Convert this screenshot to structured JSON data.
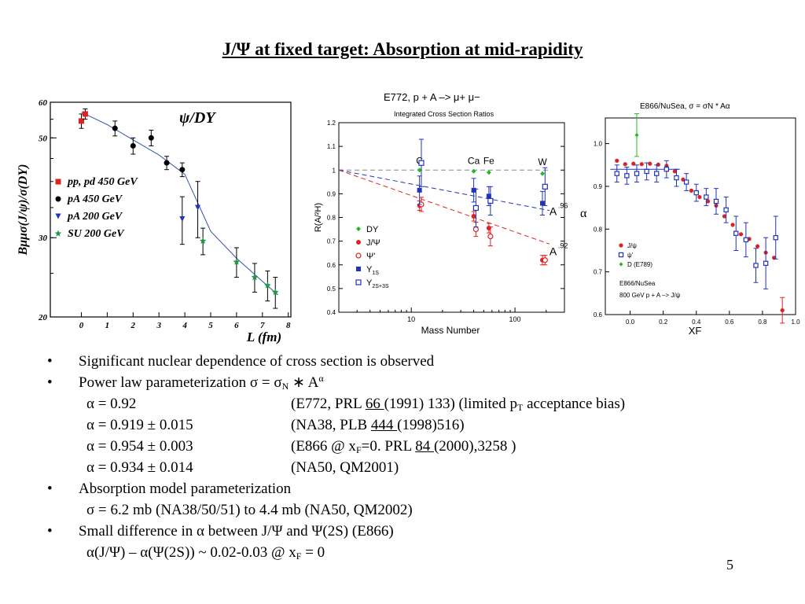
{
  "title": "J/Ψ at fixed target: Absorption at mid-rapidity",
  "page_number": "5",
  "chart_data": [
    {
      "type": "scatter",
      "title": "ψ/DY",
      "ylabel": "Bμμσ(J/ψ)/σ(DY)",
      "xlabel": "L (fm)",
      "xlim": [
        -1.2,
        8.1
      ],
      "ylim": [
        20,
        60
      ],
      "yscale": "log",
      "xticks": [
        0,
        1,
        2,
        3,
        4,
        5,
        6,
        7,
        8
      ],
      "yticks": [
        20,
        30,
        50,
        60
      ],
      "series": [
        {
          "name": "pp, pd 450 GeV",
          "color": "#dd2222",
          "marker": "square",
          "points": [
            {
              "x": 0.0,
              "y": 54.5,
              "e": 2.0
            },
            {
              "x": 0.15,
              "y": 56.5,
              "e": 1.5
            }
          ]
        },
        {
          "name": "pA 450 GeV",
          "color": "#000000",
          "marker": "circle",
          "points": [
            {
              "x": 1.3,
              "y": 52.5,
              "e": 2.0
            },
            {
              "x": 2.0,
              "y": 48.0,
              "e": 2.0
            },
            {
              "x": 2.7,
              "y": 50.0,
              "e": 2.0
            },
            {
              "x": 3.3,
              "y": 44.0,
              "e": 1.5
            },
            {
              "x": 3.9,
              "y": 42.5,
              "e": 1.5
            }
          ]
        },
        {
          "name": "pA 200 GeV",
          "color": "#2233bb",
          "marker": "triangle-down",
          "points": [
            {
              "x": 3.9,
              "y": 33.0,
              "e": 4.0
            },
            {
              "x": 4.5,
              "y": 35.0,
              "e": 5.0
            }
          ]
        },
        {
          "name": "SU 200 GeV",
          "color": "#229944",
          "marker": "star",
          "points": [
            {
              "x": 4.7,
              "y": 29.5,
              "e": 2.0
            },
            {
              "x": 6.0,
              "y": 26.5,
              "e": 2.0
            },
            {
              "x": 6.7,
              "y": 24.5,
              "e": 1.8
            },
            {
              "x": 7.2,
              "y": 23.5,
              "e": 1.8
            },
            {
              "x": 7.5,
              "y": 22.7,
              "e": 1.8
            }
          ]
        }
      ],
      "fit_curve": [
        {
          "x": 0.0,
          "y": 57
        },
        {
          "x": 1,
          "y": 53.5
        },
        {
          "x": 2,
          "y": 49.5
        },
        {
          "x": 3,
          "y": 45.8
        },
        {
          "x": 4,
          "y": 41.5
        },
        {
          "x": 5,
          "y": 31
        },
        {
          "x": 6,
          "y": 27
        },
        {
          "x": 7,
          "y": 24
        },
        {
          "x": 7.6,
          "y": 22.4
        }
      ]
    },
    {
      "type": "scatter",
      "title": "E772,  p + A –>  μ+ μ−",
      "subtitle": "Integrated Cross Section Ratios",
      "ylabel": "R(A/²H)",
      "xlabel": "Mass Number",
      "xscale": "log",
      "xlim": [
        2,
        300
      ],
      "ylim": [
        0.4,
        1.2
      ],
      "xticks": [
        10,
        100
      ],
      "yticks": [
        "0.4",
        "0.5",
        "0.6",
        "0.7",
        "0.8",
        "0.9",
        "1",
        "1.1",
        "1.2"
      ],
      "element_labels": [
        {
          "text": "C",
          "x": 12,
          "y": 1.025
        },
        {
          "text": "Ca",
          "x": 40,
          "y": 1.025
        },
        {
          "text": "Fe",
          "x": 56,
          "y": 1.025
        },
        {
          "text": "W",
          "x": 184,
          "y": 1.02
        }
      ],
      "curve_labels": [
        {
          "text": "A",
          "sup": ".96",
          "x": 215,
          "y": 0.83
        },
        {
          "text": "A",
          "sup": ".92",
          "x": 215,
          "y": 0.66
        }
      ],
      "series": [
        {
          "name": "DY",
          "color": "#22bb22",
          "marker": "diamond",
          "points": [
            {
              "x": 12,
              "y": 1.0
            },
            {
              "x": 40,
              "y": 0.995
            },
            {
              "x": 56,
              "y": 0.99
            },
            {
              "x": 184,
              "y": 0.985
            }
          ]
        },
        {
          "name": "J/Ψ",
          "color": "#dd2222",
          "marker": "circle",
          "points": [
            {
              "x": 12,
              "y": 0.85,
              "e": 0.02
            },
            {
              "x": 40,
              "y": 0.805,
              "e": 0.02
            },
            {
              "x": 56,
              "y": 0.755,
              "e": 0.02
            },
            {
              "x": 184,
              "y": 0.62,
              "e": 0.02
            }
          ]
        },
        {
          "name": "Ψ'",
          "color": "#dd2222",
          "marker": "circle-open",
          "points": [
            {
              "x": 12.5,
              "y": 0.855,
              "e": 0.03
            },
            {
              "x": 42,
              "y": 0.75,
              "e": 0.03
            },
            {
              "x": 58,
              "y": 0.72,
              "e": 0.04
            },
            {
              "x": 195,
              "y": 0.62,
              "e": 0.02
            }
          ]
        },
        {
          "name": "Υ1S",
          "color": "#2233bb",
          "marker": "square",
          "points": [
            {
              "x": 12,
              "y": 0.915,
              "e": 0.06
            },
            {
              "x": 40,
              "y": 0.915,
              "e": 0.05
            },
            {
              "x": 56,
              "y": 0.89,
              "e": 0.04
            },
            {
              "x": 184,
              "y": 0.86,
              "e": 0.05
            }
          ]
        },
        {
          "name": "Υ2S+3S",
          "color": "#2233bb",
          "marker": "square-open",
          "points": [
            {
              "x": 12.5,
              "y": 1.03,
              "e": 0.1
            },
            {
              "x": 42,
              "y": 0.84,
              "e": 0.08
            },
            {
              "x": 58,
              "y": 0.87,
              "e": 0.06
            },
            {
              "x": 195,
              "y": 0.93,
              "e": 0.08
            }
          ]
        }
      ],
      "fits": [
        {
          "color": "#888888",
          "alpha": 1.0
        },
        {
          "color": "#2233bb",
          "alpha": 0.96
        },
        {
          "color": "#dd2222",
          "alpha": 0.92
        }
      ],
      "legend_position": "bottom-left"
    },
    {
      "type": "scatter",
      "title": "E866/NuSea, σ = σN * Aα",
      "ylabel": "α",
      "xlabel": "XF",
      "xlim": [
        -0.15,
        1.0
      ],
      "ylim": [
        0.6,
        1.06
      ],
      "xticks": [
        "0.0",
        "0.2",
        "0.4",
        "0.6",
        "0.8",
        "1.0"
      ],
      "yticks": [
        "0.6",
        "0.7",
        "0.8",
        "0.9",
        "1.0"
      ],
      "annotation": [
        "E866/NuSea",
        "800 GeV p + A –> J/ψ"
      ],
      "series": [
        {
          "name": "J/ψ",
          "color": "#dd2222",
          "marker": "circle",
          "points": [
            {
              "x": -0.08,
              "y": 0.96
            },
            {
              "x": -0.03,
              "y": 0.952
            },
            {
              "x": 0.02,
              "y": 0.953
            },
            {
              "x": 0.07,
              "y": 0.952
            },
            {
              "x": 0.12,
              "y": 0.953
            },
            {
              "x": 0.17,
              "y": 0.951
            },
            {
              "x": 0.22,
              "y": 0.948
            },
            {
              "x": 0.27,
              "y": 0.935
            },
            {
              "x": 0.32,
              "y": 0.916
            },
            {
              "x": 0.37,
              "y": 0.89
            },
            {
              "x": 0.42,
              "y": 0.875
            },
            {
              "x": 0.47,
              "y": 0.865
            },
            {
              "x": 0.52,
              "y": 0.855
            },
            {
              "x": 0.57,
              "y": 0.83
            },
            {
              "x": 0.62,
              "y": 0.81
            },
            {
              "x": 0.67,
              "y": 0.788
            },
            {
              "x": 0.72,
              "y": 0.777
            },
            {
              "x": 0.77,
              "y": 0.76
            },
            {
              "x": 0.82,
              "y": 0.745
            },
            {
              "x": 0.87,
              "y": 0.733
            },
            {
              "x": 0.92,
              "y": 0.61,
              "e": 0.03
            }
          ]
        },
        {
          "name": "ψ'",
          "color": "#2233bb",
          "marker": "square-open",
          "points": [
            {
              "x": -0.08,
              "y": 0.93,
              "e": 0.02
            },
            {
              "x": -0.02,
              "y": 0.925,
              "e": 0.02
            },
            {
              "x": 0.04,
              "y": 0.93,
              "e": 0.02
            },
            {
              "x": 0.1,
              "y": 0.935,
              "e": 0.02
            },
            {
              "x": 0.16,
              "y": 0.93,
              "e": 0.02
            },
            {
              "x": 0.22,
              "y": 0.94,
              "e": 0.02
            },
            {
              "x": 0.28,
              "y": 0.92,
              "e": 0.02
            },
            {
              "x": 0.34,
              "y": 0.91,
              "e": 0.02
            },
            {
              "x": 0.4,
              "y": 0.885,
              "e": 0.02
            },
            {
              "x": 0.46,
              "y": 0.875,
              "e": 0.02
            },
            {
              "x": 0.52,
              "y": 0.865,
              "e": 0.03
            },
            {
              "x": 0.58,
              "y": 0.845,
              "e": 0.03
            },
            {
              "x": 0.64,
              "y": 0.79,
              "e": 0.04
            },
            {
              "x": 0.7,
              "y": 0.775,
              "e": 0.04
            },
            {
              "x": 0.76,
              "y": 0.715,
              "e": 0.04
            },
            {
              "x": 0.82,
              "y": 0.72,
              "e": 0.06
            },
            {
              "x": 0.88,
              "y": 0.78,
              "e": 0.05
            }
          ]
        },
        {
          "name": "D (E789)",
          "color": "#22bb22",
          "marker": "diamond",
          "points": [
            {
              "x": 0.04,
              "y": 1.02,
              "e": 0.05
            }
          ]
        }
      ],
      "fit_boxes": [
        {
          "x0": -0.12,
          "x1": 0.3,
          "y": 0.94
        }
      ],
      "legend_position": "bottom-left"
    }
  ],
  "bullets": {
    "b1": "Significant nuclear dependence of cross section is observed",
    "b2_pre": "Power law parameterization σ = σ",
    "b2_sub": "N",
    "b2_mid": " ∗ A",
    "b2_sup": "α",
    "r1_alpha": "α = 0.92",
    "r1_pre": "(E772, PRL ",
    "r1_vol": "66 ",
    "r1_mid": "(1991) 133) (limited p",
    "r1_sub": "T",
    "r1_post": " acceptance bias)",
    "r2_alpha": "α = 0.919 ± 0.015",
    "r2_pre": "(NA38, PLB ",
    "r2_vol": "444 ",
    "r2_post": "(1998)516)",
    "r3_alpha": "α = 0.954 ± 0.003",
    "r3_pre": "(E866 @ x",
    "r3_sub": "F",
    "r3_mid": "=0. PRL ",
    "r3_vol": "84 ",
    "r3_post": "(2000),3258 )",
    "r4_alpha": "α = 0.934 ± 0.014",
    "r4_ref": "(NA50, QM2001)",
    "b3": "Absorption model parameterization",
    "b3_line": "σ   = 6.2 mb (NA38/50/51) to 4.4 mb (NA50, QM2002)",
    "b4": "Small difference in α between J/Ψ and Ψ(2S) (E866)",
    "b4_pre": "α(J/Ψ) – α(Ψ(2S)) ~ 0.02-0.03 @ x",
    "b4_sub": "F",
    "b4_post": " = 0",
    "bullet_char": "•"
  }
}
